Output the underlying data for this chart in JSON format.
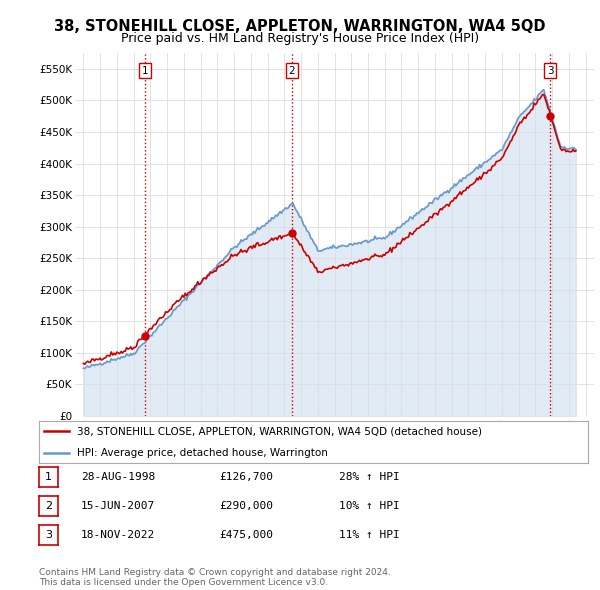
{
  "title": "38, STONEHILL CLOSE, APPLETON, WARRINGTON, WA4 5QD",
  "subtitle": "Price paid vs. HM Land Registry's House Price Index (HPI)",
  "ylim": [
    0,
    575000
  ],
  "yticks": [
    0,
    50000,
    100000,
    150000,
    200000,
    250000,
    300000,
    350000,
    400000,
    450000,
    500000,
    550000
  ],
  "ytick_labels": [
    "£0",
    "£50K",
    "£100K",
    "£150K",
    "£200K",
    "£250K",
    "£300K",
    "£350K",
    "£400K",
    "£450K",
    "£500K",
    "£550K"
  ],
  "xlim_start": 1994.5,
  "xlim_end": 2025.5,
  "xticks": [
    1995,
    1996,
    1997,
    1998,
    1999,
    2000,
    2001,
    2002,
    2003,
    2004,
    2005,
    2006,
    2007,
    2008,
    2009,
    2010,
    2011,
    2012,
    2013,
    2014,
    2015,
    2016,
    2017,
    2018,
    2019,
    2020,
    2021,
    2022,
    2023,
    2024,
    2025
  ],
  "sale_dates": [
    1998.66,
    2007.46,
    2022.88
  ],
  "sale_prices": [
    126700,
    290000,
    475000
  ],
  "sale_labels": [
    "1",
    "2",
    "3"
  ],
  "property_color": "#cc0000",
  "hpi_color": "#6699cc",
  "hpi_fill_color": "#c5d8ee",
  "vline_color": "#cc0000",
  "legend_label_property": "38, STONEHILL CLOSE, APPLETON, WARRINGTON, WA4 5QD (detached house)",
  "legend_label_hpi": "HPI: Average price, detached house, Warrington",
  "table_rows": [
    {
      "num": "1",
      "date": "28-AUG-1998",
      "price": "£126,700",
      "change": "28% ↑ HPI"
    },
    {
      "num": "2",
      "date": "15-JUN-2007",
      "price": "£290,000",
      "change": "10% ↑ HPI"
    },
    {
      "num": "3",
      "date": "18-NOV-2022",
      "price": "£475,000",
      "change": "11% ↑ HPI"
    }
  ],
  "footnote": "Contains HM Land Registry data © Crown copyright and database right 2024.\nThis data is licensed under the Open Government Licence v3.0.",
  "background_color": "#ffffff",
  "grid_color": "#dddddd"
}
